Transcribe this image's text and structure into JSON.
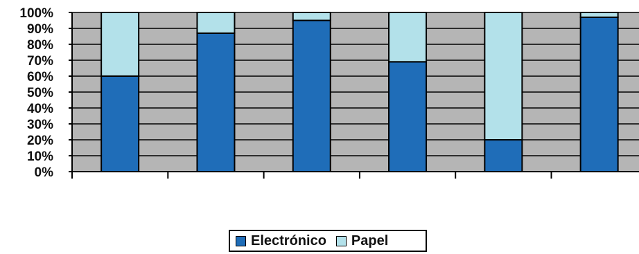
{
  "chart_data": {
    "type": "bar",
    "stacked": true,
    "categories": [
      "",
      "",
      "",
      "",
      "",
      ""
    ],
    "series": [
      {
        "name": "Electrónico",
        "values": [
          60,
          87,
          95,
          69,
          20,
          97
        ],
        "color": "#1f6db8"
      },
      {
        "name": "Papel",
        "values": [
          40,
          13,
          5,
          31,
          80,
          3
        ],
        "color": "#b3e1ea"
      }
    ],
    "ylim": [
      0,
      100
    ],
    "yticks": [
      "0%",
      "10%",
      "20%",
      "30%",
      "40%",
      "50%",
      "60%",
      "70%",
      "80%",
      "90%",
      "100%"
    ],
    "grid": true,
    "plot_background": "#b5b5b5",
    "legend_position": "bottom"
  }
}
